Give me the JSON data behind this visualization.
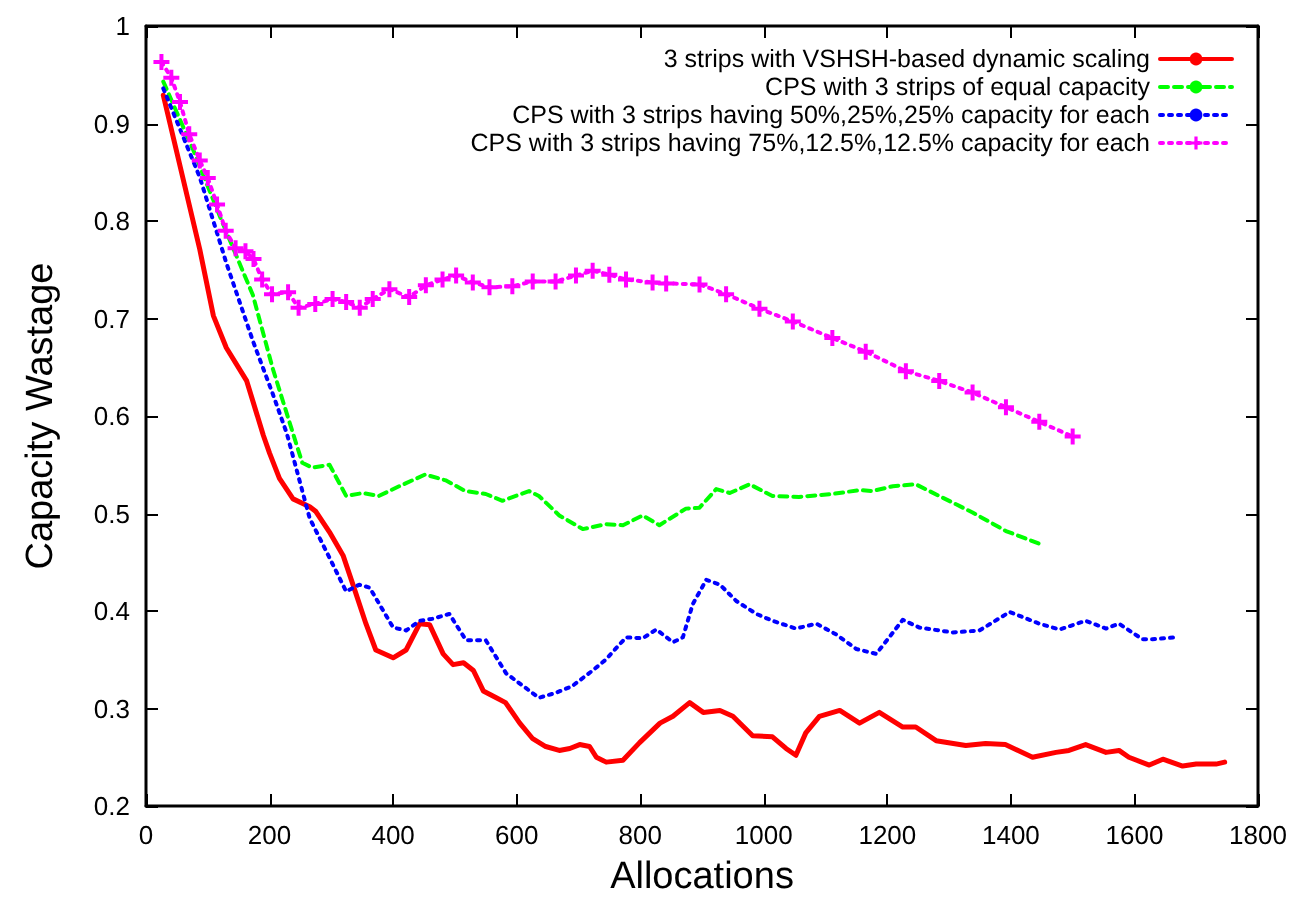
{
  "chart_data": {
    "type": "line",
    "xlabel": "Allocations",
    "ylabel": "Capacity Wastage",
    "xlim": [
      0,
      1800
    ],
    "xticks": [
      0,
      200,
      400,
      600,
      800,
      1000,
      1200,
      1400,
      1600,
      1800
    ],
    "ylim": [
      0.2,
      1
    ],
    "yticks": [
      0.2,
      0.3,
      0.4,
      0.5,
      0.6,
      0.7,
      0.8,
      0.9,
      1
    ],
    "grid": false,
    "legend": "top right",
    "series": [
      {
        "name": "3 strips with VSHSH-based dynamic scaling",
        "color": "#ff0000",
        "line_style": "solid",
        "marker": "none",
        "x": [
          28,
          87,
          109,
          130,
          163,
          190,
          200,
          216,
          238,
          265,
          275,
          297,
          319,
          335,
          356,
          372,
          400,
          421,
          443,
          459,
          481,
          497,
          514,
          530,
          546,
          567,
          582,
          605,
          626,
          647,
          669,
          686,
          702,
          718,
          729,
          745,
          772,
          799,
          832,
          853,
          880,
          902,
          929,
          950,
          982,
          1014,
          1036,
          1052,
          1068,
          1090,
          1123,
          1155,
          1187,
          1225,
          1246,
          1279,
          1327,
          1359,
          1391,
          1435,
          1473,
          1494,
          1521,
          1554,
          1575,
          1591,
          1624,
          1646,
          1678,
          1700,
          1732,
          1746
        ],
        "values": [
          0.929,
          0.771,
          0.703,
          0.67,
          0.636,
          0.58,
          0.562,
          0.536,
          0.515,
          0.507,
          0.502,
          0.481,
          0.457,
          0.427,
          0.387,
          0.36,
          0.352,
          0.36,
          0.387,
          0.386,
          0.356,
          0.345,
          0.347,
          0.339,
          0.318,
          0.311,
          0.306,
          0.285,
          0.269,
          0.261,
          0.257,
          0.259,
          0.263,
          0.261,
          0.25,
          0.245,
          0.247,
          0.265,
          0.285,
          0.292,
          0.306,
          0.296,
          0.298,
          0.292,
          0.272,
          0.271,
          0.259,
          0.252,
          0.275,
          0.292,
          0.298,
          0.285,
          0.296,
          0.281,
          0.281,
          0.267,
          0.262,
          0.264,
          0.263,
          0.25,
          0.255,
          0.257,
          0.263,
          0.255,
          0.257,
          0.25,
          0.242,
          0.248,
          0.241,
          0.243,
          0.243,
          0.245
        ]
      },
      {
        "name": "CPS with 3 strips of equal capacity",
        "color": "#00ff00",
        "line_style": "dashed",
        "marker": "none",
        "x": [
          28,
          77,
          120,
          173,
          205,
          238,
          253,
          269,
          297,
          324,
          351,
          377,
          410,
          452,
          485,
          517,
          550,
          577,
          620,
          636,
          669,
          707,
          744,
          772,
          804,
          831,
          874,
          896,
          923,
          945,
          977,
          1014,
          1057,
          1111,
          1155,
          1176,
          1209,
          1246,
          1284,
          1338,
          1392,
          1446
        ],
        "values": [
          0.943,
          0.872,
          0.804,
          0.724,
          0.649,
          0.582,
          0.552,
          0.547,
          0.55,
          0.518,
          0.521,
          0.518,
          0.528,
          0.54,
          0.534,
          0.523,
          0.52,
          0.513,
          0.523,
          0.518,
          0.498,
          0.484,
          0.489,
          0.488,
          0.498,
          0.488,
          0.505,
          0.506,
          0.525,
          0.521,
          0.53,
          0.518,
          0.517,
          0.52,
          0.524,
          0.523,
          0.528,
          0.53,
          0.518,
          0.501,
          0.482,
          0.469
        ]
      },
      {
        "name": "CPS with 3 strips having 50%,25%,25% capacity for each",
        "color": "#0000ff",
        "line_style": "dotted",
        "marker": "none",
        "x": [
          28,
          87,
          130,
          173,
          205,
          228,
          265,
          292,
          324,
          345,
          362,
          400,
          421,
          443,
          464,
          491,
          518,
          550,
          583,
          636,
          663,
          690,
          723,
          744,
          777,
          804,
          826,
          853,
          869,
          885,
          907,
          929,
          956,
          988,
          1014,
          1052,
          1085,
          1117,
          1150,
          1182,
          1203,
          1225,
          1252,
          1306,
          1349,
          1398,
          1446,
          1479,
          1521,
          1554,
          1575,
          1613,
          1629,
          1667
        ],
        "values": [
          0.936,
          0.845,
          0.757,
          0.677,
          0.623,
          0.582,
          0.495,
          0.461,
          0.42,
          0.427,
          0.424,
          0.383,
          0.38,
          0.39,
          0.392,
          0.397,
          0.37,
          0.37,
          0.336,
          0.311,
          0.316,
          0.323,
          0.339,
          0.35,
          0.373,
          0.372,
          0.381,
          0.368,
          0.373,
          0.407,
          0.432,
          0.427,
          0.41,
          0.397,
          0.39,
          0.382,
          0.387,
          0.376,
          0.361,
          0.356,
          0.373,
          0.391,
          0.383,
          0.378,
          0.38,
          0.399,
          0.387,
          0.381,
          0.39,
          0.382,
          0.387,
          0.371,
          0.371,
          0.373
        ]
      },
      {
        "name": "CPS with 3 strips having 75%,12.5%,12.5% capacity for each",
        "color": "#ff00ff",
        "line_style": "dotted",
        "marker": "cross",
        "x": [
          25,
          41,
          55,
          70,
          87,
          100,
          115,
          129,
          145,
          161,
          174,
          188,
          204,
          230,
          247,
          274,
          302,
          324,
          346,
          367,
          394,
          426,
          453,
          480,
          502,
          529,
          556,
          593,
          626,
          663,
          696,
          723,
          750,
          777,
          820,
          842,
          896,
          939,
          993,
          1047,
          1111,
          1165,
          1230,
          1284,
          1338,
          1392,
          1446,
          1500
        ],
        "values": [
          0.963,
          0.947,
          0.922,
          0.889,
          0.862,
          0.844,
          0.817,
          0.79,
          0.772,
          0.769,
          0.761,
          0.74,
          0.725,
          0.727,
          0.711,
          0.715,
          0.72,
          0.717,
          0.711,
          0.72,
          0.73,
          0.722,
          0.734,
          0.74,
          0.744,
          0.737,
          0.732,
          0.733,
          0.738,
          0.738,
          0.744,
          0.749,
          0.745,
          0.74,
          0.737,
          0.736,
          0.735,
          0.725,
          0.71,
          0.697,
          0.68,
          0.666,
          0.646,
          0.636,
          0.624,
          0.609,
          0.594,
          0.579
        ]
      }
    ]
  }
}
